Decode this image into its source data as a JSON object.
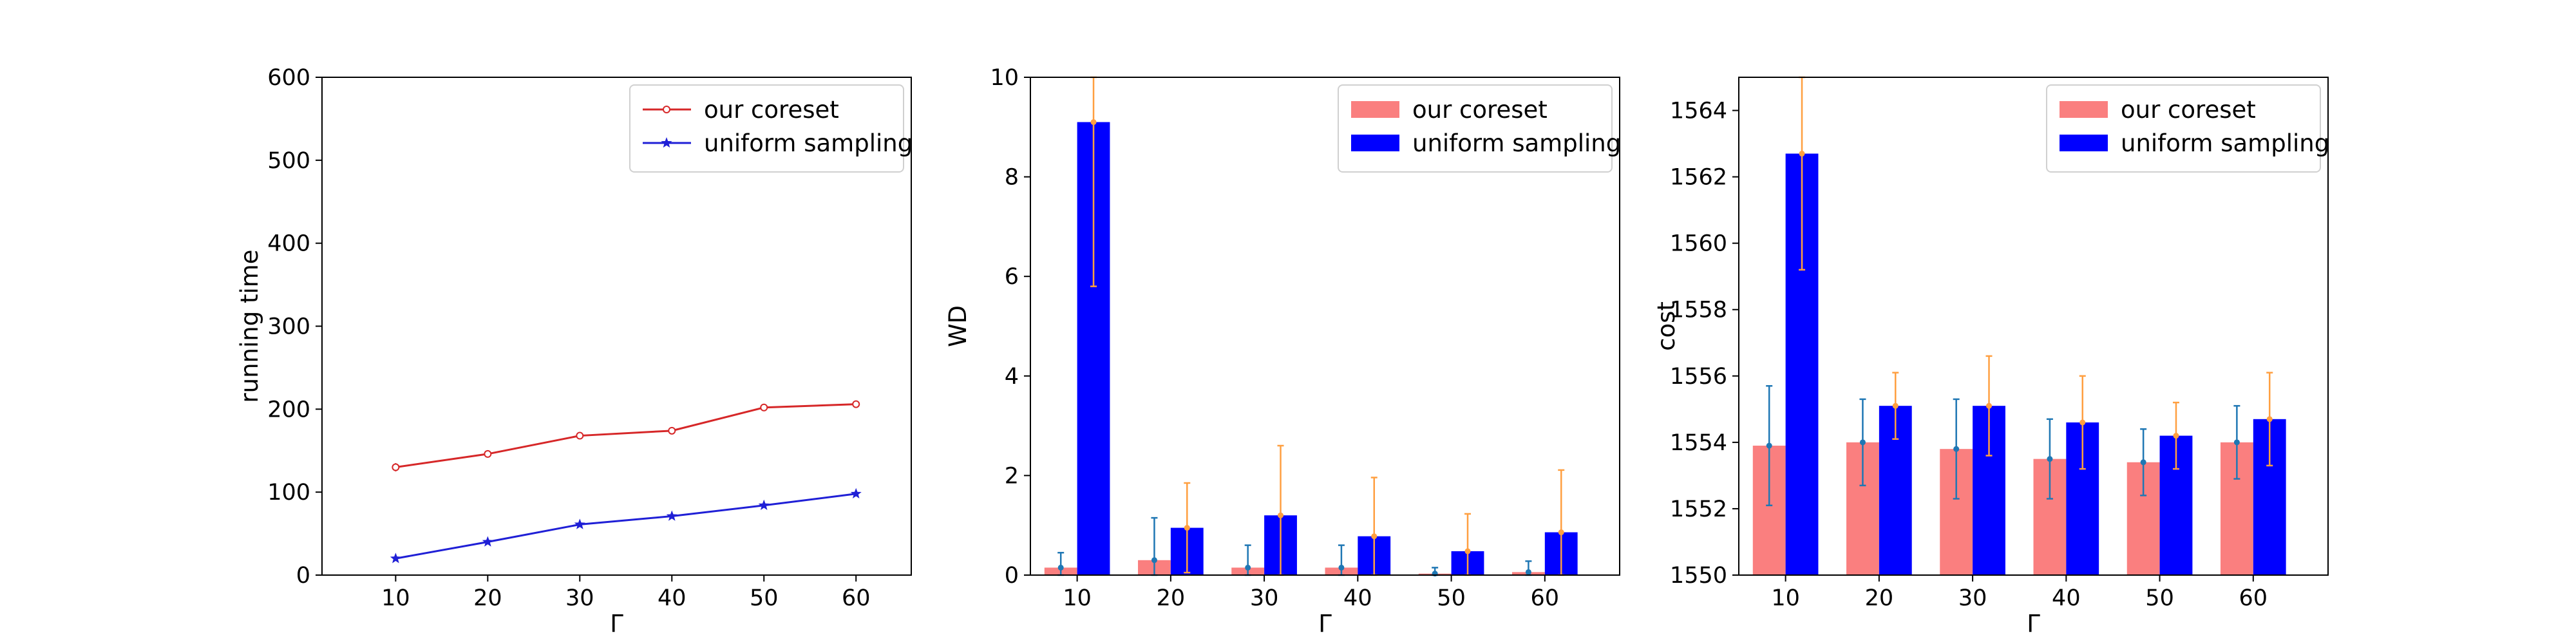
{
  "colors": {
    "coreset_line": "#d62728",
    "uniform_line": "#1f1fd6",
    "coreset_bar": "#fa7f7f",
    "uniform_bar": "#0000ff",
    "coreset_errorbar": "#1f77b4",
    "uniform_errorbar": "#ff9f40"
  },
  "chart_data": [
    {
      "type": "line",
      "xlabel": "Γ",
      "ylabel": "running time",
      "x": [
        10,
        20,
        30,
        40,
        50,
        60
      ],
      "xlim": [
        2,
        66
      ],
      "ylim": [
        0,
        600
      ],
      "yticks": [
        0,
        100,
        200,
        300,
        400,
        500,
        600
      ],
      "legend_position": "top-right",
      "grid": false,
      "series": [
        {
          "name": "our coreset",
          "marker": "hollow-circle",
          "values": [
            130,
            146,
            168,
            174,
            202,
            206
          ],
          "errors": [
            5,
            3,
            3,
            3,
            3,
            3
          ]
        },
        {
          "name": "uniform sampling",
          "marker": "star",
          "values": [
            20,
            40,
            61,
            71,
            84,
            98
          ],
          "errors": [
            1,
            1,
            1,
            1,
            1,
            1
          ]
        }
      ]
    },
    {
      "type": "bar",
      "xlabel": "Γ",
      "ylabel": "WD",
      "categories": [
        "10",
        "20",
        "30",
        "40",
        "50",
        "60"
      ],
      "ylim": [
        0,
        10
      ],
      "yticks": [
        0,
        2,
        4,
        6,
        8,
        10
      ],
      "legend_position": "top-right",
      "grid": false,
      "series": [
        {
          "name": "our coreset",
          "values": [
            0.15,
            0.3,
            0.15,
            0.15,
            0.03,
            0.06
          ],
          "errors": [
            0.3,
            0.85,
            0.45,
            0.45,
            0.12,
            0.22
          ]
        },
        {
          "name": "uniform sampling",
          "values": [
            9.1,
            0.95,
            1.2,
            0.78,
            0.48,
            0.86
          ],
          "errors": [
            3.3,
            0.9,
            1.4,
            1.18,
            0.75,
            1.25
          ]
        }
      ]
    },
    {
      "type": "bar",
      "xlabel": "Γ",
      "ylabel": "cost",
      "categories": [
        "10",
        "20",
        "30",
        "40",
        "50",
        "60"
      ],
      "ylim": [
        1550,
        1565
      ],
      "yticks": [
        1550,
        1552,
        1554,
        1556,
        1558,
        1560,
        1562,
        1564
      ],
      "legend_position": "top-right",
      "grid": false,
      "series": [
        {
          "name": "our coreset",
          "values": [
            1553.9,
            1554.0,
            1553.8,
            1553.5,
            1553.4,
            1554.0
          ],
          "errors": [
            1.8,
            1.3,
            1.5,
            1.2,
            1.0,
            1.1
          ]
        },
        {
          "name": "uniform sampling",
          "values": [
            1562.7,
            1555.1,
            1555.1,
            1554.6,
            1554.2,
            1554.7
          ],
          "errors": [
            3.5,
            1.0,
            1.5,
            1.4,
            1.0,
            1.4
          ]
        }
      ]
    }
  ]
}
